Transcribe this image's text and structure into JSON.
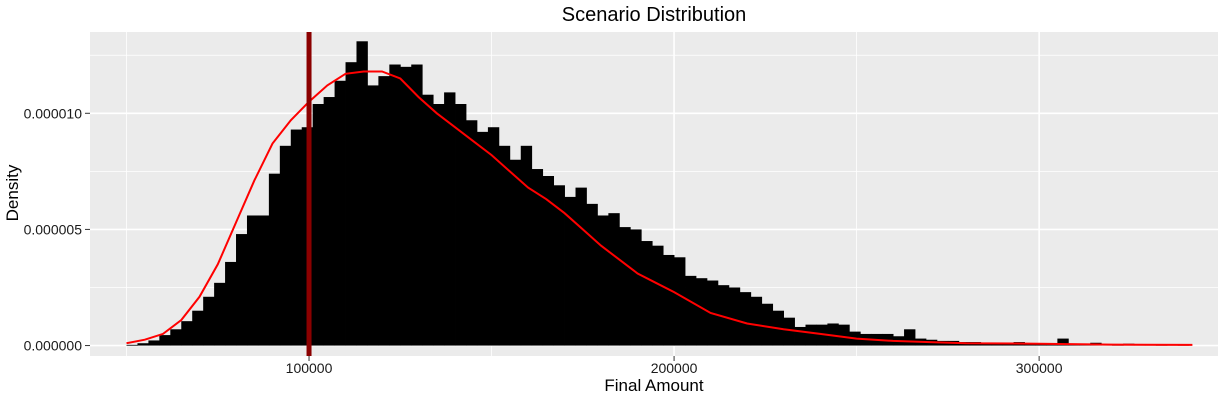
{
  "chart_data": {
    "type": "bar",
    "title": "Scenario Distribution",
    "xlabel": "Final Amount",
    "ylabel": "Density",
    "xlim": [
      40000,
      349000
    ],
    "ylim": [
      -4.5e-07,
      1.35e-05
    ],
    "x_ticks": [
      100000,
      200000,
      300000
    ],
    "x_tick_labels": [
      "100000",
      "200000",
      "300000"
    ],
    "y_ticks": [
      0.0,
      5e-06,
      1e-05
    ],
    "y_tick_labels": [
      "0.000000",
      "0.000005",
      "0.000010"
    ],
    "grid": true,
    "legend": "none",
    "bin_start": 50000,
    "bin_width": 3000,
    "densities": [
      3e-08,
      1e-07,
      2.2e-07,
      4.5e-07,
      7e-07,
      1.05e-06,
      1.5e-06,
      2.1e-06,
      2.7e-06,
      3.6e-06,
      4.8e-06,
      5.6e-06,
      5.6e-06,
      7.4e-06,
      8.6e-06,
      9.3e-06,
      9.4e-06,
      1.04e-05,
      1.07e-05,
      1.14e-05,
      1.22e-05,
      1.31e-05,
      1.12e-05,
      1.16e-05,
      1.21e-05,
      1.2e-05,
      1.21e-05,
      1.08e-05,
      1.04e-05,
      1.09e-05,
      1.04e-05,
      9.7e-06,
      9.2e-06,
      9.4e-06,
      8.6e-06,
      8e-06,
      8.6e-06,
      7.6e-06,
      7.3e-06,
      6.9e-06,
      6.4e-06,
      6.8e-06,
      6.1e-06,
      5.6e-06,
      5.7e-06,
      5.1e-06,
      5e-06,
      4.5e-06,
      4.3e-06,
      3.9e-06,
      3.8e-06,
      3e-06,
      2.9e-06,
      2.8e-06,
      2.6e-06,
      2.5e-06,
      2.3e-06,
      2.1e-06,
      1.8e-06,
      1.5e-06,
      1.2e-06,
      8e-07,
      9e-07,
      9e-07,
      9.5e-07,
      9e-07,
      6e-07,
      5e-07,
      5e-07,
      5e-07,
      4e-07,
      7e-07,
      3e-07,
      2.5e-07,
      2e-07,
      2e-07,
      1.5e-07,
      1.5e-07,
      1.2e-07,
      1e-07,
      1e-07,
      1.5e-07,
      1e-07,
      1e-07,
      8e-08,
      3e-07,
      6e-08,
      5e-08,
      1.2e-07,
      5e-08,
      3e-08,
      8e-08,
      4e-08,
      4e-08,
      3e-08,
      4e-08,
      3e-08
    ],
    "density_curve": {
      "x": [
        50000,
        55000,
        60000,
        65000,
        70000,
        75000,
        80000,
        85000,
        90000,
        95000,
        100000,
        105000,
        110000,
        115000,
        120000,
        125000,
        130000,
        135000,
        140000,
        145000,
        150000,
        155000,
        160000,
        165000,
        170000,
        175000,
        180000,
        185000,
        190000,
        195000,
        200000,
        210000,
        220000,
        230000,
        240000,
        250000,
        260000,
        270000,
        280000,
        300000,
        320000,
        342000
      ],
      "y": [
        1e-07,
        2.5e-07,
        5e-07,
        1.1e-06,
        2.1e-06,
        3.5e-06,
        5.3e-06,
        7.1e-06,
        8.7e-06,
        9.7e-06,
        1.05e-05,
        1.12e-05,
        1.17e-05,
        1.18e-05,
        1.18e-05,
        1.15e-05,
        1.07e-05,
        1e-05,
        9.4e-06,
        8.8e-06,
        8.2e-06,
        7.5e-06,
        6.8e-06,
        6.3e-06,
        5.7e-06,
        5e-06,
        4.3e-06,
        3.7e-06,
        3.1e-06,
        2.7e-06,
        2.3e-06,
        1.4e-06,
        9.5e-07,
        7e-07,
        5e-07,
        3e-07,
        2e-07,
        1.5e-07,
        1e-07,
        8e-08,
        4e-08,
        3e-08
      ]
    },
    "reference_line_x": 100000,
    "colors": {
      "panel": "#ebebeb",
      "grid": "#ffffff",
      "bar": "#000000",
      "curve": "#ff0000",
      "reference": "#8b0000"
    }
  }
}
